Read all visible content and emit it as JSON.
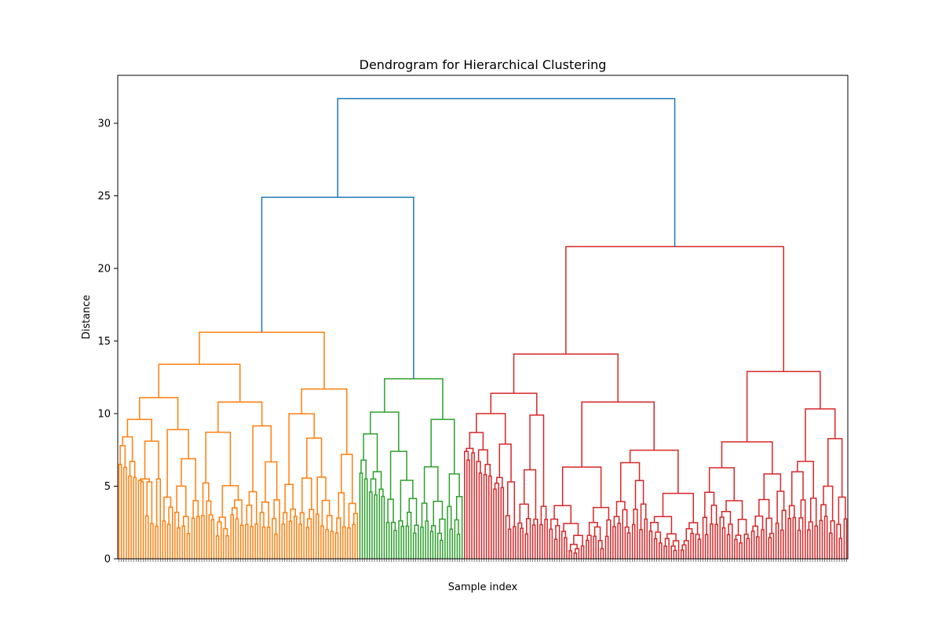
{
  "chart_data": {
    "type": "dendrogram",
    "title": "Dendrogram for Hierarchical Clustering",
    "xlabel": "Sample index",
    "ylabel": "Distance",
    "ylim": [
      0,
      33.3
    ],
    "yticks": [
      0,
      5,
      10,
      15,
      20,
      25,
      30
    ],
    "leaf_count": 300,
    "leaf_labels_legible": false,
    "grid": false,
    "top_links": [
      {
        "name": "root",
        "height": 31.7,
        "color": "#1f77b4"
      },
      {
        "name": "left-branch",
        "height": 24.9,
        "color": "#1f77b4"
      },
      {
        "name": "right-cluster",
        "height": 21.5,
        "color": "#d62728"
      }
    ],
    "clusters": [
      {
        "name": "orange",
        "color": "#ff7f0e",
        "merge_height": 15.6,
        "sub_merges": [
          13.4,
          11.7,
          11.1,
          10.8,
          9.6,
          8.9,
          8.4,
          8.1,
          7.8,
          6.7,
          6.5,
          6.3,
          5.7,
          5.6,
          5.5,
          5.5,
          5.4,
          5.3,
          5.3
        ]
      },
      {
        "name": "green",
        "color": "#2ca02c",
        "merge_height": 12.4,
        "sub_merges": [
          10.1,
          9.6,
          8.6,
          7.4,
          6.8,
          6.0,
          5.9,
          5.5,
          5.5,
          4.8,
          4.6,
          4.4,
          4.3
        ]
      },
      {
        "name": "red",
        "color": "#d62728",
        "merge_height": 21.5,
        "sub_merges": [
          14.1,
          12.9,
          11.4,
          10.8,
          10.0,
          9.9,
          8.7,
          7.9,
          7.6,
          7.5,
          7.4,
          7.3,
          6.8,
          6.7,
          6.5,
          5.9,
          5.8,
          5.7,
          5.6,
          5.3,
          5.2,
          4.9,
          4.8
        ]
      }
    ]
  }
}
